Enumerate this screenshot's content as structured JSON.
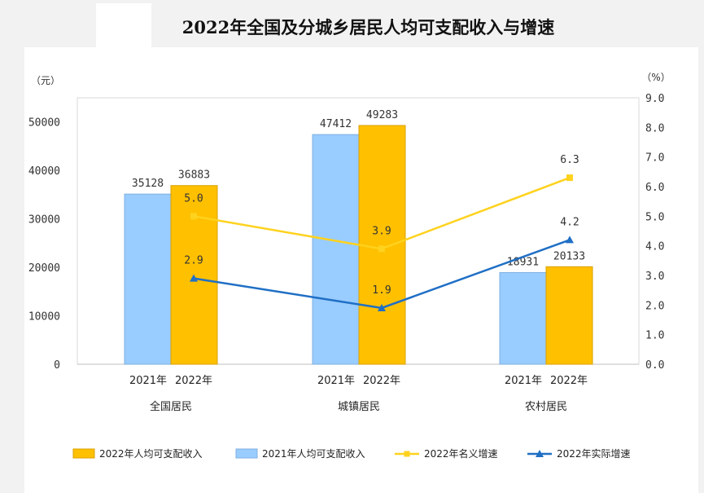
{
  "chart_data": {
    "type": "bar",
    "title": "2022年全国及分城乡居民人均可支配收入与增速",
    "left_axis": {
      "unit": "（元）",
      "min": 0,
      "max": 55000,
      "ticks": [
        0,
        10000,
        20000,
        30000,
        40000,
        50000
      ]
    },
    "right_axis": {
      "unit": "（%）",
      "min": 0,
      "max": 9,
      "ticks": [
        "0.0",
        "1.0",
        "2.0",
        "3.0",
        "4.0",
        "5.0",
        "6.0",
        "7.0",
        "8.0",
        "9.0"
      ]
    },
    "categories": [
      "全国居民",
      "城镇居民",
      "农村居民"
    ],
    "sub_labels": [
      "2021年",
      "2022年"
    ],
    "bar_series": [
      {
        "name": "2021年人均可支配收入",
        "color": "#99ccff",
        "values": [
          35128,
          47412,
          18931
        ]
      },
      {
        "name": "2022年人均可支配收入",
        "color": "#ffc000",
        "values": [
          36883,
          49283,
          20133
        ]
      }
    ],
    "line_series": [
      {
        "name": "2022年名义增速",
        "color": "#ffd21e",
        "values": [
          5.0,
          3.9,
          6.3
        ],
        "labels": [
          "5.0",
          "3.9",
          "6.3"
        ],
        "marker": "square"
      },
      {
        "name": "2022年实际增速",
        "color": "#1f6fc5",
        "values": [
          2.9,
          1.9,
          4.2
        ],
        "labels": [
          "2.9",
          "1.9",
          "4.2"
        ],
        "marker": "triangle"
      }
    ],
    "legend": [
      "2022年人均可支配收入",
      "2021年人均可支配收入",
      "2022年名义增速",
      "2022年实际增速"
    ],
    "legend_position": "bottom"
  }
}
